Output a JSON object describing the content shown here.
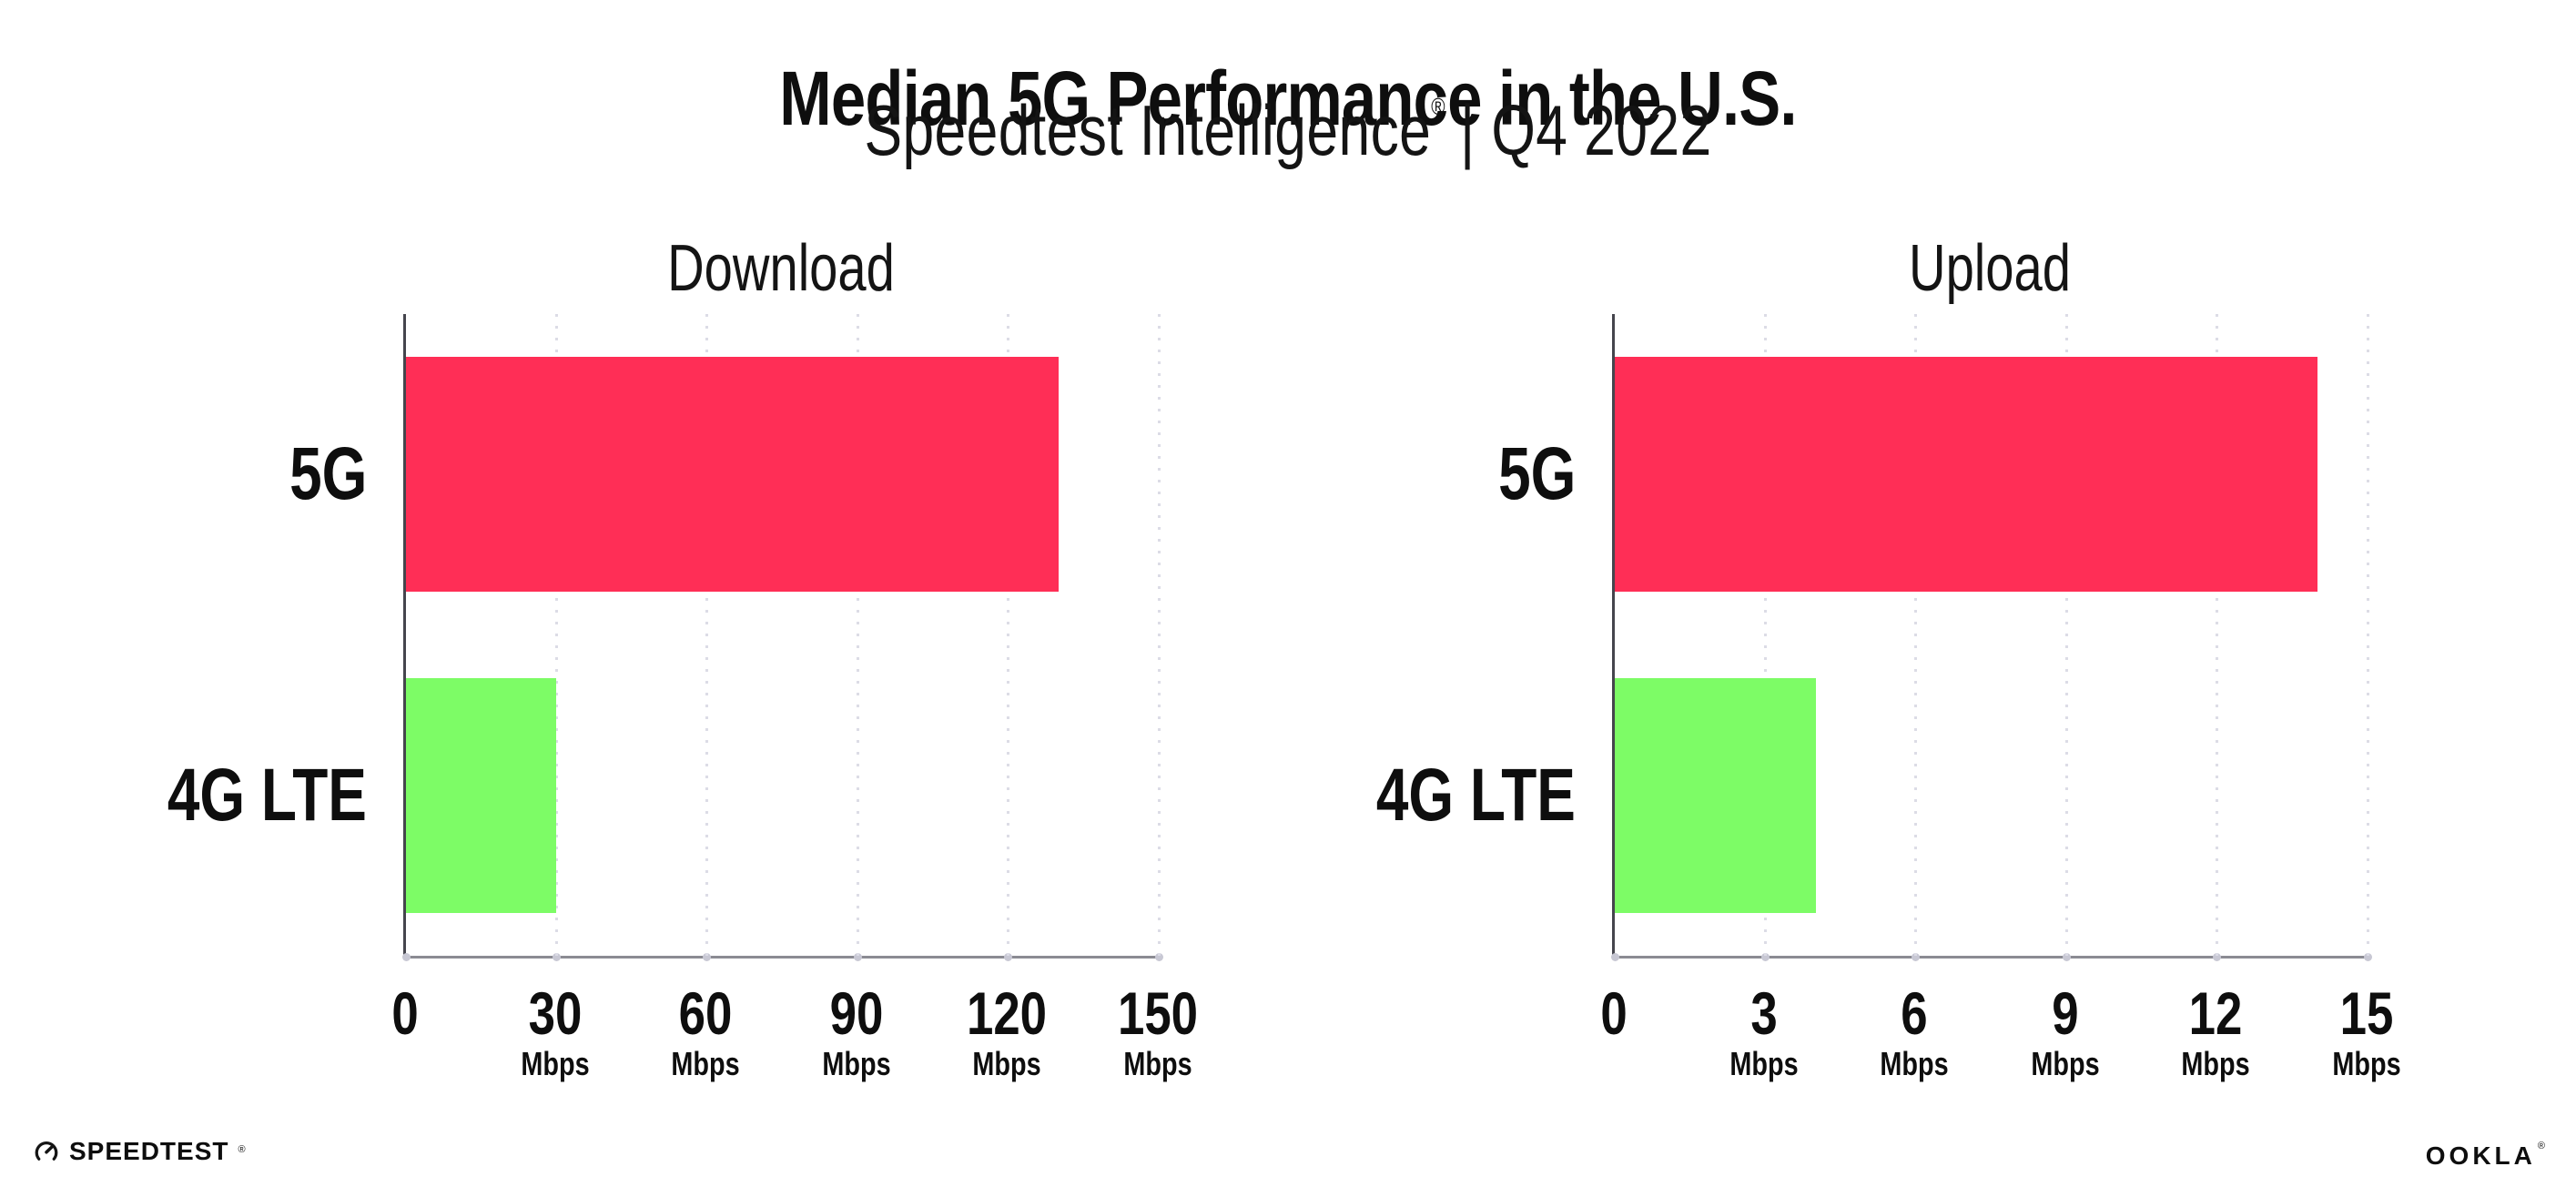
{
  "header": {
    "title": "Median 5G Performance in the U.S.",
    "subtitle_brand": "Speedtest Intelligence",
    "subtitle_reg": "®",
    "subtitle_rest": "| Q4 2022"
  },
  "colors": {
    "bar_5g": "#ff2e56",
    "bar_4g": "#7dfc66",
    "gridline": "#dcdce6",
    "axis_y": "#45454d",
    "axis_x": "#8b8b93",
    "axis_dot": "#c8c8d4",
    "text": "#0e0e0e"
  },
  "chart_data": [
    {
      "type": "bar",
      "orientation": "horizontal",
      "title": "Download",
      "categories": [
        "5G",
        "4G LTE"
      ],
      "values": [
        130,
        30
      ],
      "unit": "Mbps",
      "tick_unit": "Mbps",
      "xlim": [
        0,
        150
      ],
      "xticks": [
        0,
        30,
        60,
        90,
        120,
        150
      ],
      "grid": "dotted-vertical",
      "legend": "none",
      "series_colors": [
        "#ff2e56",
        "#7dfc66"
      ]
    },
    {
      "type": "bar",
      "orientation": "horizontal",
      "title": "Upload",
      "categories": [
        "5G",
        "4G LTE"
      ],
      "values": [
        14,
        4
      ],
      "unit": "Mbps",
      "tick_unit": "Mbps",
      "xlim": [
        0,
        15
      ],
      "xticks": [
        0,
        3,
        6,
        9,
        12,
        15
      ],
      "grid": "dotted-vertical",
      "legend": "none",
      "series_colors": [
        "#ff2e56",
        "#7dfc66"
      ]
    }
  ],
  "footer": {
    "speedtest_label": "SPEEDTEST",
    "speedtest_reg": "®",
    "ookla_label": "OOKLA",
    "ookla_reg": "®"
  }
}
